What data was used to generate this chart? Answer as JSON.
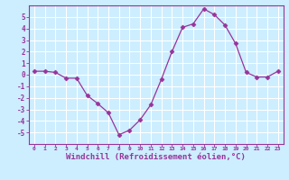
{
  "x": [
    0,
    1,
    2,
    3,
    4,
    5,
    6,
    7,
    8,
    9,
    10,
    11,
    12,
    13,
    14,
    15,
    16,
    17,
    18,
    19,
    20,
    21,
    22,
    23
  ],
  "y": [
    0.3,
    0.3,
    0.2,
    -0.3,
    -0.3,
    -1.8,
    -2.5,
    -3.3,
    -5.2,
    -4.8,
    -3.9,
    -2.6,
    -0.4,
    2.0,
    4.1,
    4.4,
    5.7,
    5.2,
    4.3,
    2.7,
    0.2,
    -0.2,
    -0.2,
    0.3
  ],
  "line_color": "#993399",
  "marker": "D",
  "markersize": 2.5,
  "bg_color": "#cceeff",
  "grid_color": "#ffffff",
  "axis_color": "#993399",
  "tick_color": "#993399",
  "xlabel": "Windchill (Refroidissement éolien,°C)",
  "xlabel_fontsize": 6.5,
  "ylim": [
    -6,
    6
  ],
  "xlim": [
    -0.5,
    23.5
  ],
  "yticks": [
    5,
    4,
    3,
    2,
    1,
    0,
    -1,
    -2,
    -3,
    -4,
    -5
  ],
  "xticks": [
    0,
    1,
    2,
    3,
    4,
    5,
    6,
    7,
    8,
    9,
    10,
    11,
    12,
    13,
    14,
    15,
    16,
    17,
    18,
    19,
    20,
    21,
    22,
    23
  ]
}
